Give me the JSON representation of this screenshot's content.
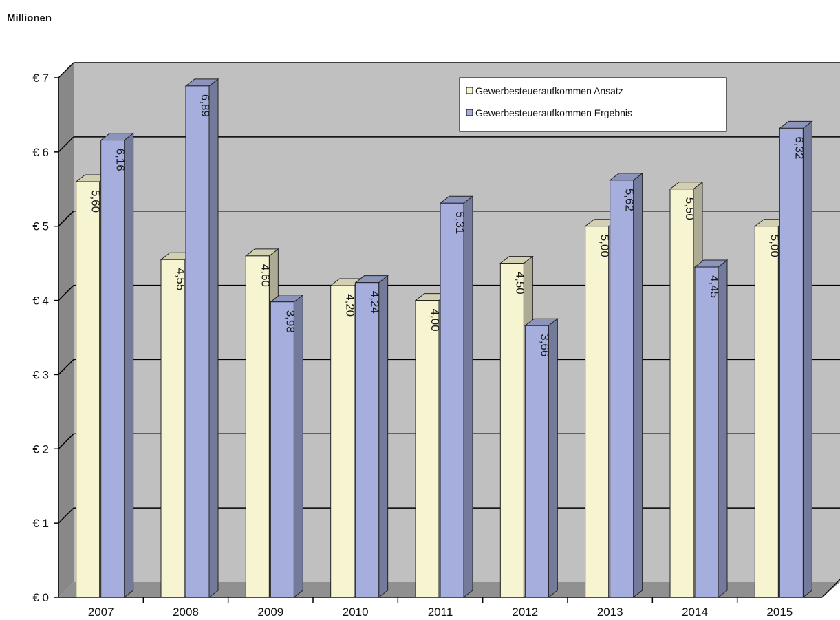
{
  "chart_data": {
    "type": "bar",
    "title": "",
    "unit_label": "Millionen",
    "xlabel": "",
    "ylabel": "",
    "categories": [
      "2007",
      "2008",
      "2009",
      "2010",
      "2011",
      "2012",
      "2013",
      "2014",
      "2015"
    ],
    "series": [
      {
        "name": "Gewerbesteueraufkommen  Ansatz",
        "values": [
          5.6,
          4.55,
          4.6,
          4.2,
          4.0,
          4.5,
          5.0,
          5.5,
          5.0
        ],
        "labels": [
          "5,60",
          "4,55",
          "4,60",
          "4,20",
          "4,00",
          "4,50",
          "5,00",
          "5,50",
          "5,00"
        ],
        "color": "#f7f4d2"
      },
      {
        "name": "Gewerbesteueraufkommen Ergebnis",
        "values": [
          6.16,
          6.89,
          3.98,
          4.24,
          5.31,
          3.66,
          5.62,
          4.45,
          6.32
        ],
        "labels": [
          "6,16",
          "6,89",
          "3,98",
          "4,24",
          "5,31",
          "3,66",
          "5,62",
          "4,45",
          "6,32"
        ],
        "color": "#a5aedc"
      }
    ],
    "ylim": [
      0,
      7
    ],
    "yticks": [
      0,
      1,
      2,
      3,
      4,
      5,
      6,
      7
    ],
    "ytick_labels": [
      "€ 0",
      "€ 1",
      "€ 2",
      "€ 3",
      "€ 4",
      "€ 5",
      "€ 6",
      "€ 7"
    ],
    "grid": true,
    "legend_position": "top-right",
    "wall_color": "#c0c0c0",
    "floor_color": "#909090"
  }
}
